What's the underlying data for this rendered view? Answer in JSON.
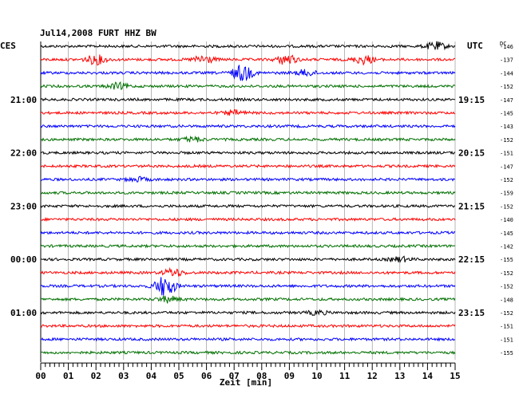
{
  "chart_data": {
    "type": "line",
    "title": "Jul14,2008   FURT HHZ BW",
    "left_timezone_label": "CES",
    "right_timezone_label": "UTC",
    "dc_header": "DC",
    "xlabel": "Zeit [min]",
    "x_ticks": [
      "00",
      "01",
      "02",
      "03",
      "04",
      "05",
      "06",
      "07",
      "08",
      "09",
      "10",
      "11",
      "12",
      "13",
      "14",
      "15"
    ],
    "xlim": [
      0,
      15
    ],
    "trace_count": 24,
    "trace_colors": [
      "#000000",
      "#ff0000",
      "#0000ff",
      "#007000"
    ],
    "left_hour_labels": [
      {
        "trace": 4,
        "text": "21:00"
      },
      {
        "trace": 8,
        "text": "22:00"
      },
      {
        "trace": 12,
        "text": "23:00"
      },
      {
        "trace": 16,
        "text": "00:00"
      },
      {
        "trace": 20,
        "text": "01:00"
      }
    ],
    "right_hour_labels": [
      {
        "trace": 4,
        "text": "19:15"
      },
      {
        "trace": 8,
        "text": "20:15"
      },
      {
        "trace": 12,
        "text": "21:15"
      },
      {
        "trace": 16,
        "text": "22:15"
      },
      {
        "trace": 20,
        "text": "23:15"
      }
    ],
    "dc_values": [
      "-146",
      "-137",
      "-144",
      "-152",
      "-147",
      "-145",
      "-143",
      "-152",
      "-151",
      "-147",
      "-152",
      "-159",
      "-152",
      "-140",
      "-145",
      "-142",
      "-155",
      "-152",
      "-152",
      "-148",
      "-152",
      "-151",
      "-151",
      "-155"
    ],
    "events": [
      {
        "trace": 0,
        "minute": 14.3,
        "amplitude": 1.2
      },
      {
        "trace": 1,
        "minute": 2.0,
        "amplitude": 1.4
      },
      {
        "trace": 1,
        "minute": 5.9,
        "amplitude": 1.3
      },
      {
        "trace": 1,
        "minute": 8.9,
        "amplitude": 1.5
      },
      {
        "trace": 1,
        "minute": 11.7,
        "amplitude": 1.3
      },
      {
        "trace": 2,
        "minute": 7.3,
        "amplitude": 2.5
      },
      {
        "trace": 2,
        "minute": 9.6,
        "amplitude": 0.9
      },
      {
        "trace": 3,
        "minute": 2.8,
        "amplitude": 0.9
      },
      {
        "trace": 5,
        "minute": 7.0,
        "amplitude": 0.7
      },
      {
        "trace": 7,
        "minute": 5.5,
        "amplitude": 0.7
      },
      {
        "trace": 10,
        "minute": 3.5,
        "amplitude": 0.6
      },
      {
        "trace": 16,
        "minute": 13.0,
        "amplitude": 0.7
      },
      {
        "trace": 17,
        "minute": 4.8,
        "amplitude": 1.2
      },
      {
        "trace": 18,
        "minute": 4.5,
        "amplitude": 3.2
      },
      {
        "trace": 19,
        "minute": 4.6,
        "amplitude": 0.9
      },
      {
        "trace": 20,
        "minute": 10.0,
        "amplitude": 0.6
      }
    ]
  }
}
